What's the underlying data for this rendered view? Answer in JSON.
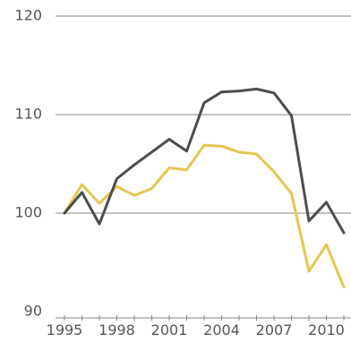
{
  "chart_data": {
    "type": "line",
    "x": [
      1995,
      1996,
      1997,
      1998,
      1999,
      2000,
      2001,
      2002,
      2003,
      2004,
      2005,
      2006,
      2007,
      2008,
      2009,
      2010,
      2011
    ],
    "series": [
      {
        "color": "#4d4d4d",
        "values": [
          100.0,
          102.1,
          98.9,
          103.5,
          104.9,
          106.2,
          107.5,
          106.3,
          111.2,
          112.3,
          112.4,
          112.6,
          112.2,
          109.9,
          99.2,
          101.1,
          98.0
        ]
      },
      {
        "color": "#e3c751",
        "values": [
          100.0,
          102.9,
          101.0,
          102.7,
          101.8,
          102.5,
          104.6,
          104.4,
          106.9,
          106.8,
          106.2,
          106.0,
          104.2,
          102.0,
          94.1,
          96.8,
          92.5
        ]
      }
    ],
    "xlim": [
      1994.5,
      2011.5
    ],
    "ylim": [
      90,
      120
    ],
    "x_ticks": [
      "1995",
      "1998",
      "2001",
      "2004",
      "2007",
      "2010"
    ],
    "y_ticks": [
      "90",
      "100",
      "110",
      "120"
    ],
    "grid": "horizontal"
  }
}
